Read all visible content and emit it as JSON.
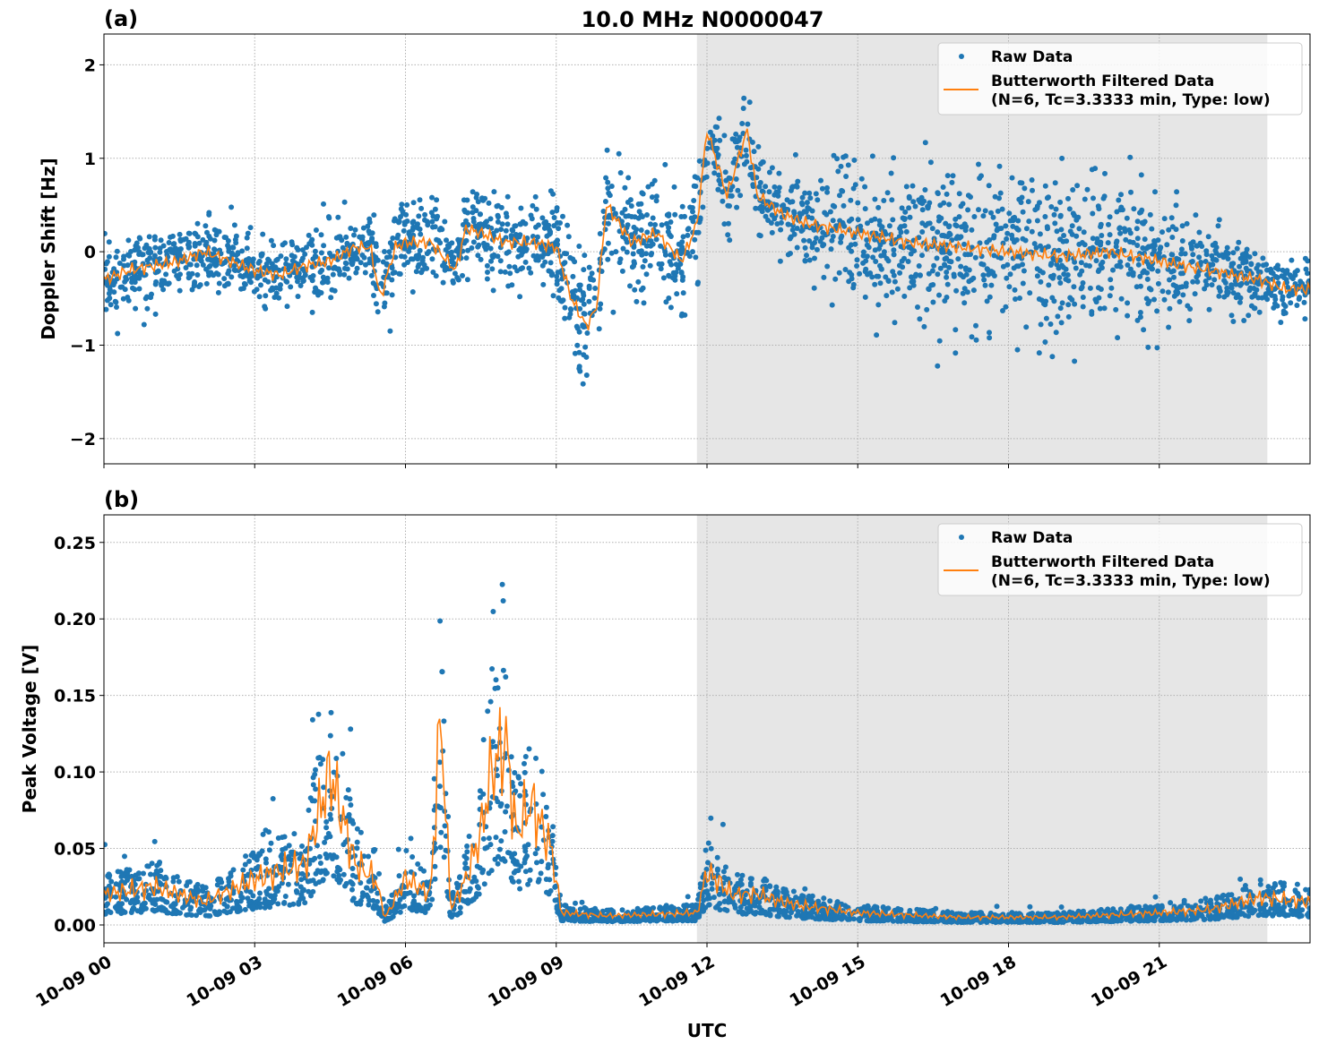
{
  "figure_title": "10.0 MHz N0000047",
  "chart_data": [
    {
      "type": "scatter",
      "panel_label": "(a)",
      "title": "10.0 MHz N0000047",
      "xlabel": "",
      "ylabel": "Doppler Shift [Hz]",
      "xlim_hours": [
        0,
        24
      ],
      "ylim": [
        -2.27,
        2.33
      ],
      "yticks": [
        2,
        1,
        0,
        -1,
        -2
      ],
      "ytick_labels": [
        "2",
        "1",
        "0",
        "−1",
        "−2"
      ],
      "grid": true,
      "shaded_region_hours": [
        11.8,
        23.15
      ],
      "legend": {
        "placement": "top-right",
        "entries": [
          "Raw Data",
          "Butterworth Filtered Data",
          "(N=6, Tc=3.3333 min, Type: low)"
        ]
      },
      "series": [
        {
          "name": "Butterworth Filtered Data",
          "color": "#ff7f0e",
          "x": [
            0,
            0.5,
            1,
            1.5,
            2,
            2.5,
            3,
            3.5,
            4,
            4.5,
            5,
            5.3,
            5.5,
            5.8,
            6,
            6.5,
            7,
            7.2,
            7.5,
            8,
            8.5,
            9,
            9.3,
            9.6,
            9.8,
            10,
            10.5,
            11,
            11.5,
            11.8,
            12,
            12.4,
            12.8,
            13,
            13.5,
            14,
            15,
            16,
            17,
            18,
            19,
            20,
            21,
            22,
            23,
            23.5,
            24
          ],
          "y": [
            -0.3,
            -0.2,
            -0.15,
            -0.1,
            0,
            -0.1,
            -0.2,
            -0.25,
            -0.15,
            -0.1,
            0.05,
            0.05,
            -0.5,
            0.05,
            0.1,
            0.1,
            -0.2,
            0.25,
            0.2,
            0.1,
            0.1,
            0.05,
            -0.5,
            -0.8,
            -0.6,
            0.5,
            0.1,
            0.2,
            -0.1,
            0.3,
            1.3,
            0.6,
            1.3,
            0.6,
            0.4,
            0.3,
            0.2,
            0.1,
            0.05,
            0,
            -0.05,
            0,
            -0.1,
            -0.2,
            -0.3,
            -0.4,
            -0.4
          ]
        },
        {
          "name": "Raw Data",
          "color": "#1f77b4",
          "spread_x": [
            0,
            5,
            9,
            9.6,
            10,
            11.8,
            12,
            14,
            15,
            17,
            19,
            21,
            22,
            24
          ],
          "spread_sd": [
            0.18,
            0.2,
            0.25,
            0.35,
            0.35,
            0.3,
            0.22,
            0.22,
            0.35,
            0.4,
            0.45,
            0.35,
            0.2,
            0.15
          ]
        }
      ]
    },
    {
      "type": "scatter",
      "panel_label": "(b)",
      "xlabel": "UTC",
      "ylabel": "Peak Voltage [V]",
      "xlim_hours": [
        0,
        24
      ],
      "ylim": [
        -0.0117,
        0.268
      ],
      "yticks": [
        0,
        0.05,
        0.1,
        0.15,
        0.2,
        0.25
      ],
      "ytick_labels": [
        "0.00",
        "0.05",
        "0.10",
        "0.15",
        "0.20",
        "0.25"
      ],
      "xtick_hours": [
        0,
        3,
        6,
        9,
        12,
        15,
        18,
        21
      ],
      "xtick_labels": [
        "10-09 00",
        "10-09 03",
        "10-09 06",
        "10-09 09",
        "10-09 12",
        "10-09 15",
        "10-09 18",
        "10-09 21"
      ],
      "grid": true,
      "shaded_region_hours": [
        11.8,
        23.15
      ],
      "legend": {
        "placement": "top-right",
        "entries": [
          "Raw Data",
          "Butterworth Filtered Data",
          "(N=6, Tc=3.3333 min, Type: low)"
        ]
      },
      "series": [
        {
          "name": "Butterworth Filtered Data",
          "color": "#ff7f0e",
          "x": [
            0,
            1,
            2,
            3,
            4,
            4.5,
            5,
            5.4,
            5.6,
            6,
            6.5,
            6.7,
            6.9,
            7.2,
            7.5,
            7.7,
            8,
            8.2,
            8.5,
            8.9,
            9.1,
            10,
            11,
            11.8,
            12,
            12.5,
            13,
            13.5,
            14,
            15,
            17,
            19,
            21,
            22,
            23,
            24
          ],
          "y": [
            0.02,
            0.025,
            0.015,
            0.03,
            0.04,
            0.1,
            0.04,
            0.03,
            0.005,
            0.03,
            0.02,
            0.14,
            0.01,
            0.03,
            0.06,
            0.1,
            0.12,
            0.06,
            0.08,
            0.05,
            0.008,
            0.006,
            0.007,
            0.008,
            0.035,
            0.02,
            0.02,
            0.015,
            0.012,
            0.008,
            0.005,
            0.005,
            0.008,
            0.01,
            0.018,
            0.015
          ]
        },
        {
          "name": "Raw Data",
          "color": "#1f77b4"
        }
      ]
    }
  ]
}
